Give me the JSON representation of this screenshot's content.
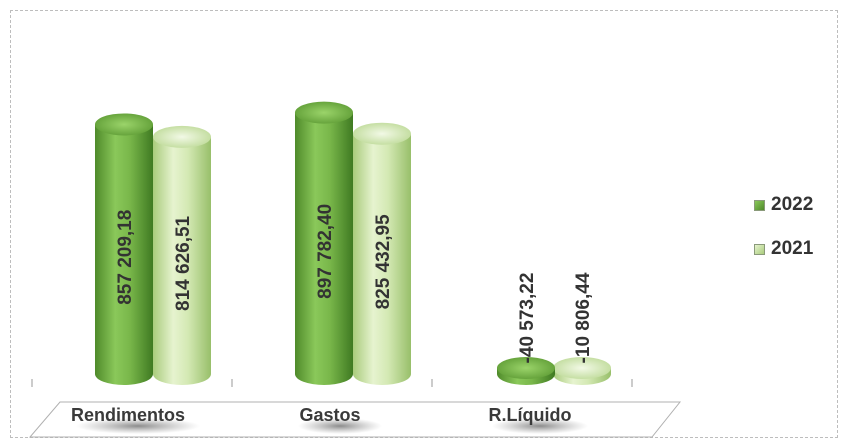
{
  "chart_data": {
    "type": "bar",
    "categories": [
      "Rendimentos",
      "Gastos",
      "R.Líquido"
    ],
    "series": [
      {
        "name": "2022",
        "values": [
          857209.18,
          897782.4,
          -40573.22
        ],
        "labels": [
          "857 209,18",
          "897 782,40",
          "-40 573,22"
        ],
        "color": "#6fae3f"
      },
      {
        "name": "2021",
        "values": [
          814626.51,
          825432.95,
          -10806.44
        ],
        "labels": [
          "814 626,51",
          "825 432,95",
          "-10 806,44"
        ],
        "color": "#c8e0a0"
      }
    ],
    "ylim": [
      0,
      900000
    ],
    "legend_position": "right"
  }
}
